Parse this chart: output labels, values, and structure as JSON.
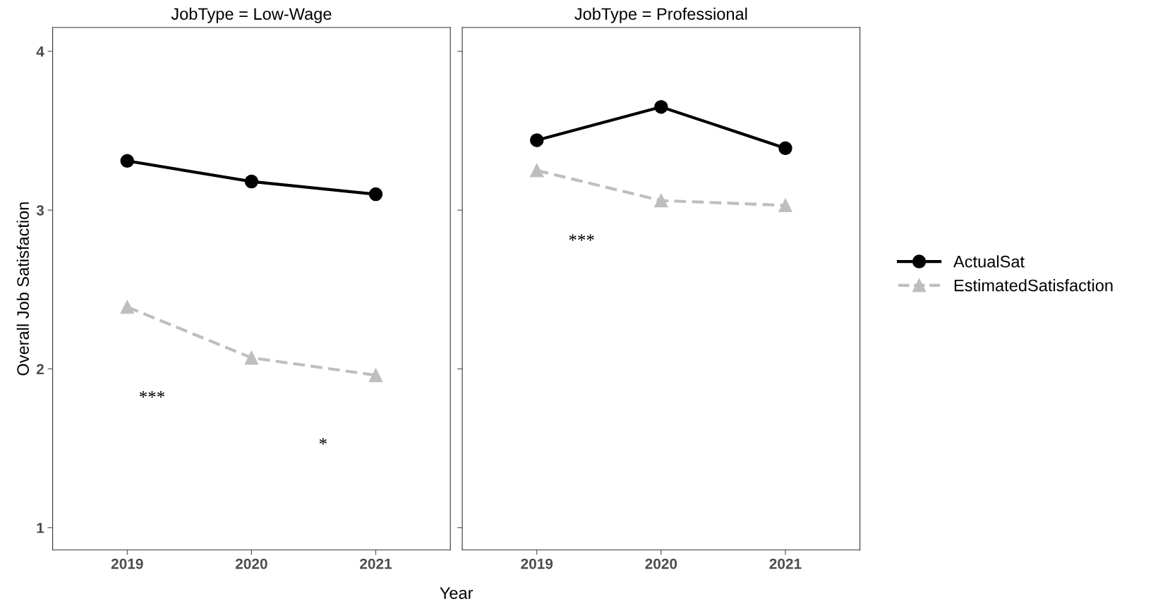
{
  "chart_data": [
    {
      "type": "line",
      "title": "JobType = Low-Wage",
      "xlabel": "Year",
      "ylabel": "Overall Job Satisfaction",
      "categories": [
        "2019",
        "2020",
        "2021"
      ],
      "ylim": [
        0.86,
        4.15
      ],
      "yticks": [
        1,
        2,
        3,
        4
      ],
      "grid": false,
      "legend": "right",
      "series": [
        {
          "name": "ActualSat",
          "color": "#000000",
          "values": [
            3.31,
            3.18,
            3.1
          ],
          "marker": "circle",
          "line_style": "solid"
        },
        {
          "name": "EstimatedSatisfaction",
          "color": "#bebebe",
          "values": [
            2.39,
            2.07,
            1.96
          ],
          "marker": "triangle",
          "line_style": "dashed"
        }
      ],
      "annotations": [
        "***",
        "*"
      ]
    },
    {
      "type": "line",
      "title": "JobType = Professional",
      "categories": [
        "2019",
        "2020",
        "2021"
      ],
      "ylim": [
        0.86,
        4.15
      ],
      "yticks": [
        1,
        2,
        3,
        4
      ],
      "tick_labels": "x",
      "grid": false,
      "series": [
        {
          "color": "#000000",
          "values": [
            3.44,
            3.65,
            3.39
          ],
          "marker": "circle",
          "line_style": "solid"
        },
        {
          "color": "#bebebe",
          "values": [
            3.25,
            3.06,
            3.03
          ],
          "marker": "triangle",
          "line_style": "dashed"
        }
      ],
      "annotations": [
        "***"
      ]
    }
  ]
}
